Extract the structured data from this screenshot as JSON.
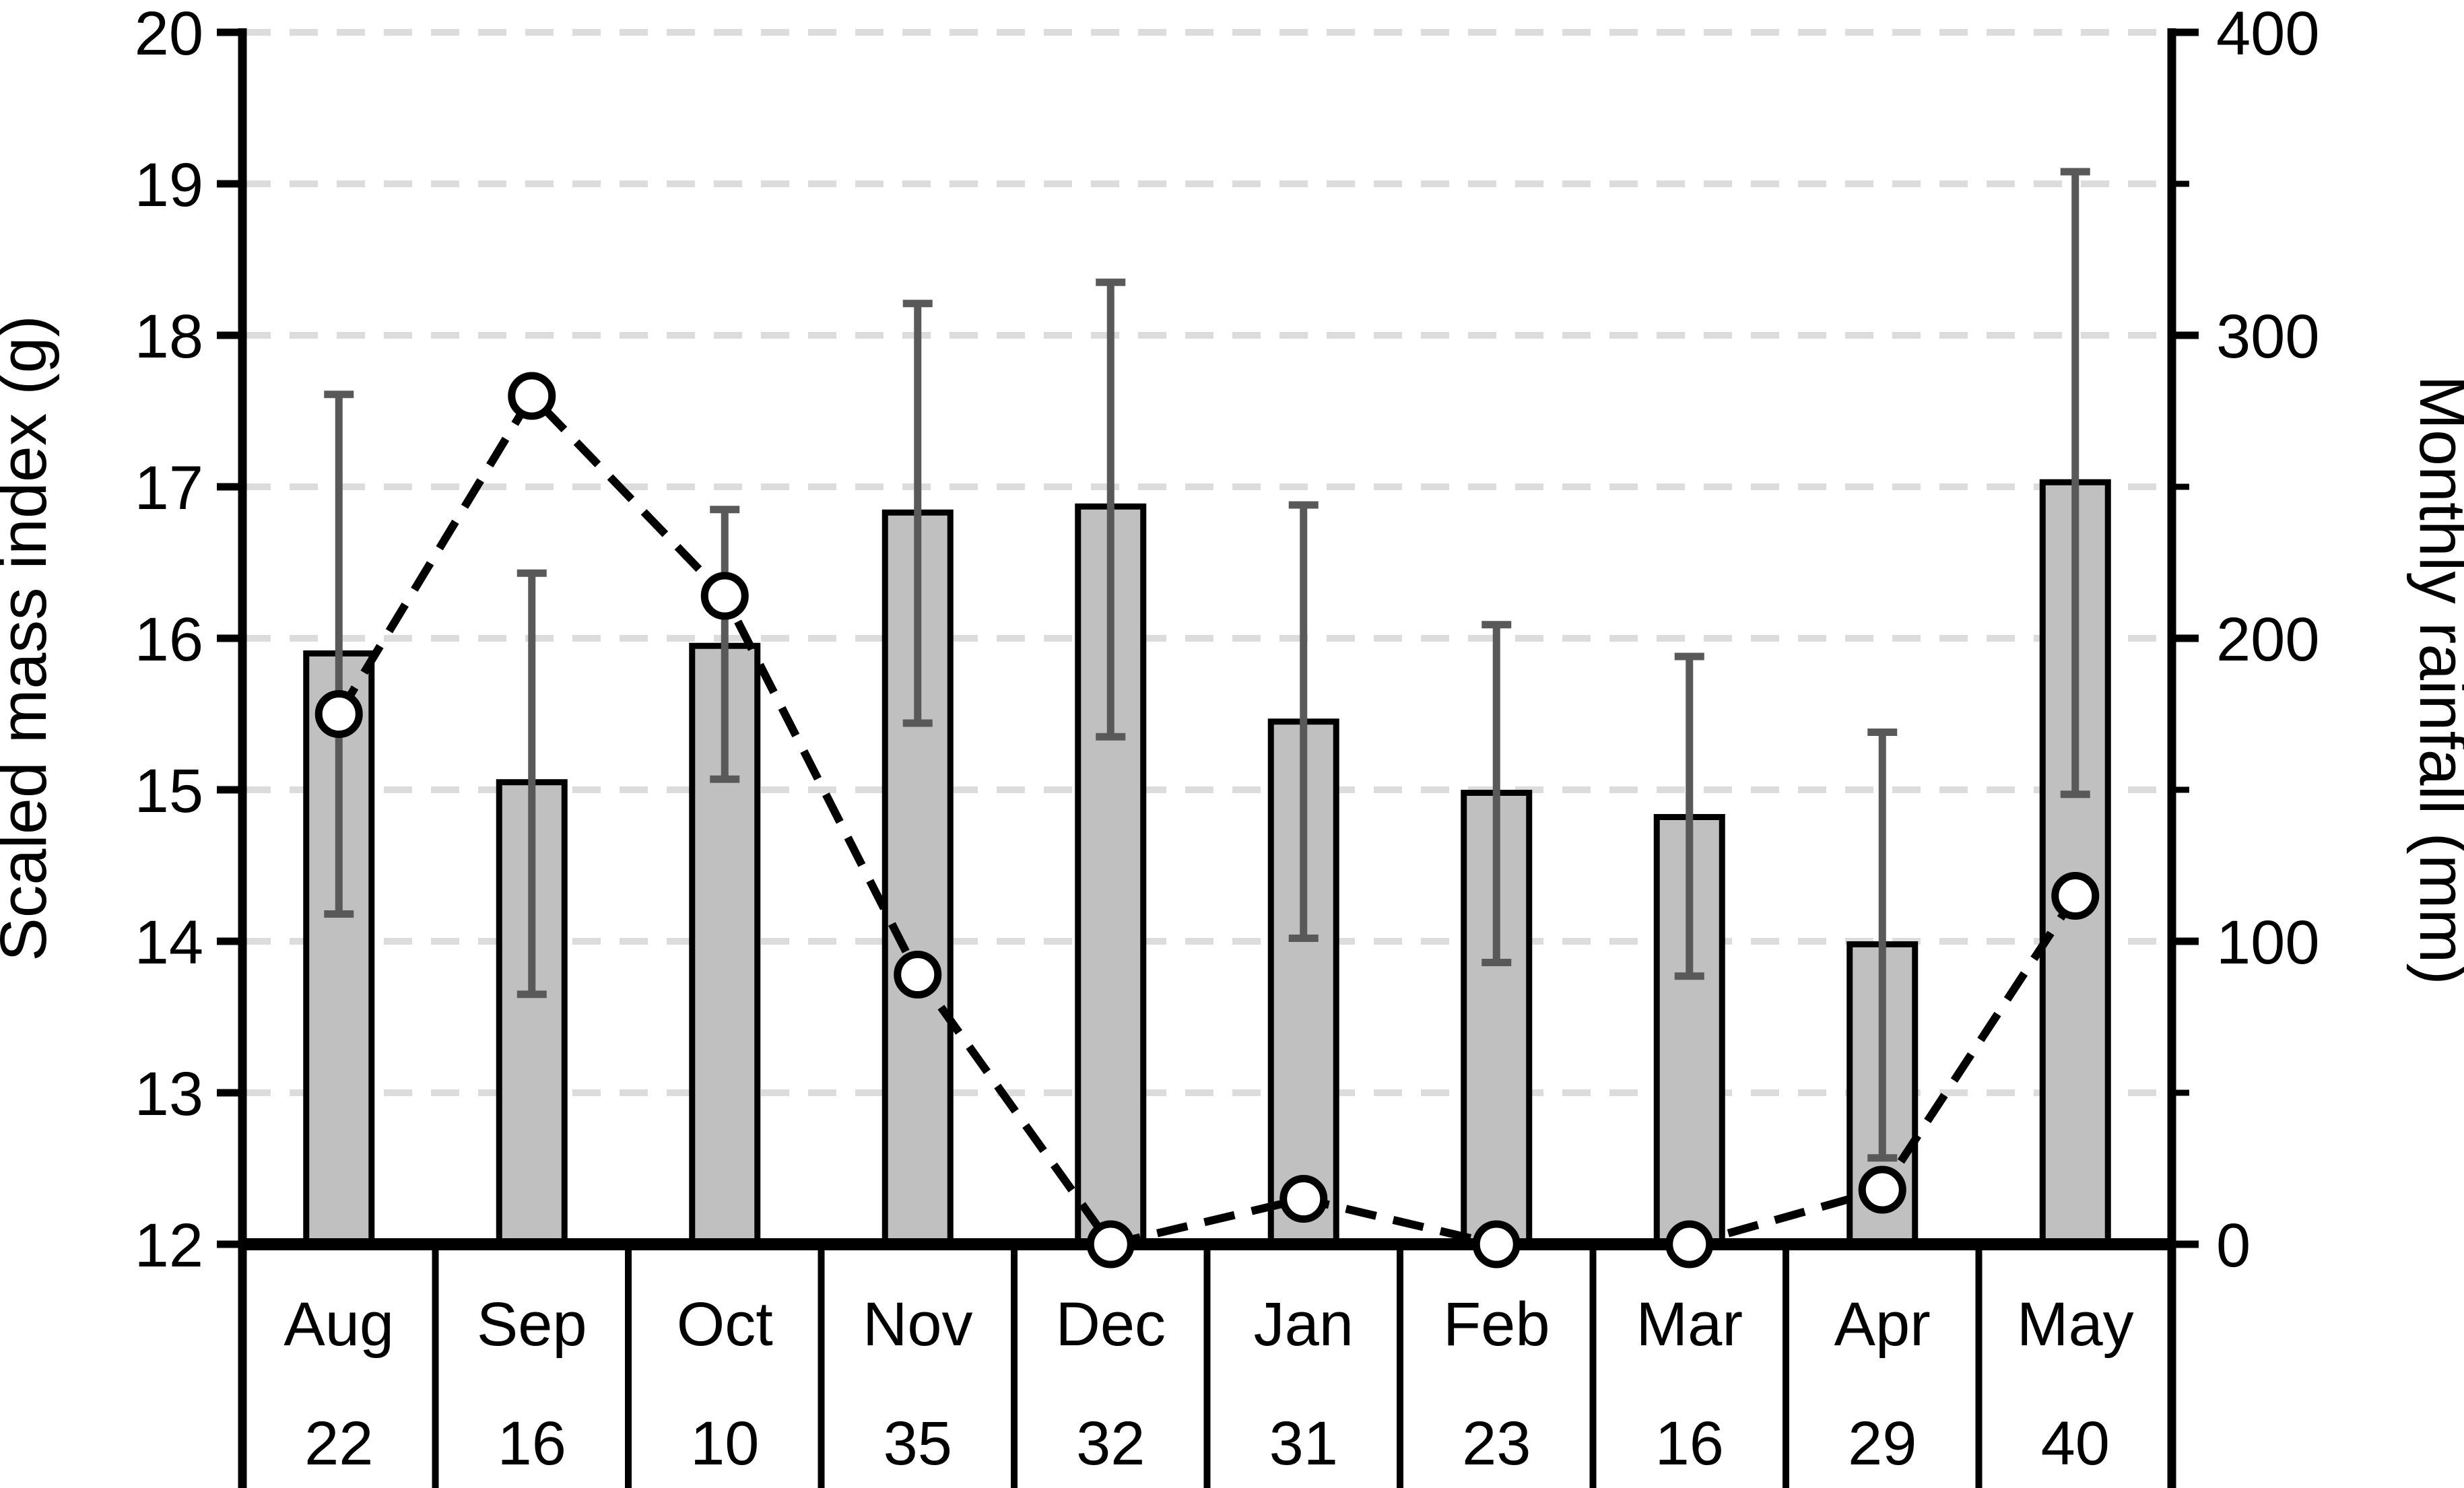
{
  "chart_data": {
    "type": "bar",
    "subtype": "dual-axis bar + dashed line with markers",
    "title": "",
    "categories": [
      "Aug",
      "Sep",
      "Oct",
      "Nov",
      "Dec",
      "Jan",
      "Feb",
      "Mar",
      "Apr",
      "May"
    ],
    "sample_sizes": [
      "22",
      "16",
      "10",
      "35",
      "32",
      "31",
      "23",
      "16",
      "29",
      "40"
    ],
    "series": [
      {
        "name": "Scaled mass index",
        "type": "bar",
        "yaxis": "left",
        "values": [
          15.9,
          15.05,
          15.95,
          16.83,
          16.87,
          15.45,
          14.98,
          14.82,
          13.98,
          17.03
        ],
        "error_high": [
          17.61,
          16.43,
          16.85,
          18.21,
          18.35,
          16.88,
          16.09,
          15.88,
          15.38,
          19.08
        ],
        "error_low": [
          14.18,
          13.65,
          15.07,
          15.44,
          15.35,
          14.02,
          13.86,
          13.77,
          12.57,
          14.97
        ]
      },
      {
        "name": "Monthly rainfall",
        "type": "line",
        "yaxis": "right",
        "values": [
          175,
          280,
          214,
          89,
          0,
          15,
          0,
          0,
          18,
          115
        ]
      }
    ],
    "left_axis": {
      "label": "Scaled mass index (g)",
      "min": 12,
      "max": 20,
      "tick_step": 1,
      "tick_labels": [
        "12",
        "13",
        "14",
        "15",
        "16",
        "17",
        "18",
        "19",
        "20"
      ]
    },
    "right_axis": {
      "label": "Monthly rainfall (mm)",
      "min": 0,
      "max": 400,
      "tick_step": 100,
      "minor_tick_step": 50,
      "tick_labels": [
        "0",
        "100",
        "200",
        "300",
        "400"
      ]
    },
    "legend": "none",
    "grid": {
      "horizontal": true,
      "style": "dashed"
    },
    "colors": {
      "bar_fill": "#C0C0C0",
      "bar_border": "#000000",
      "error_bar": "#595959",
      "line": "#000000",
      "marker_fill": "#FFFFFF",
      "marker_border": "#000000",
      "gridline": "#DCDCDC",
      "axis": "#000000"
    }
  }
}
